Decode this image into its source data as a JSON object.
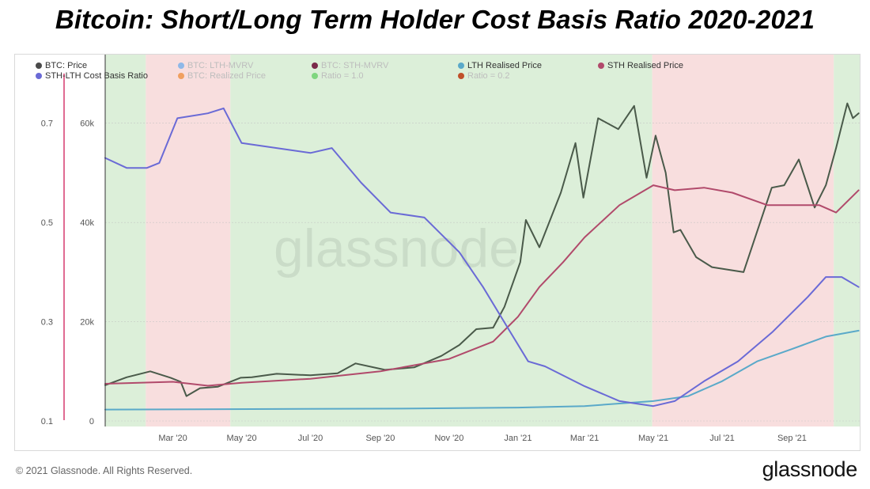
{
  "title": "Bitcoin: Short/Long Term Holder Cost Basis Ratio 2020-2021",
  "watermark": "glassnode",
  "footer": {
    "copyright": "© 2021 Glassnode. All Rights Reserved.",
    "logo": "glassnode"
  },
  "legend": [
    {
      "label": "BTC: Price",
      "color": "#4a4a4a",
      "active": true
    },
    {
      "label": "BTC: LTH-MVRV",
      "color": "#8fb8e8",
      "active": false
    },
    {
      "label": "BTC: STH-MVRV",
      "color": "#7a2a4a",
      "active": false
    },
    {
      "label": "LTH Realised Price",
      "color": "#5aa9c9",
      "active": true
    },
    {
      "label": "STH Realised Price",
      "color": "#b14a6b",
      "active": true
    },
    {
      "label": "STH-LTH Cost Basis Ratio",
      "color": "#6a6ad6",
      "active": true
    },
    {
      "label": "BTC: Realized Price",
      "color": "#f0a060",
      "active": false
    },
    {
      "label": "Ratio = 1.0",
      "color": "#7fd67f",
      "active": false
    },
    {
      "label": "Ratio = 0.2",
      "color": "#c0502a",
      "active": false
    }
  ],
  "chart_data": {
    "type": "line",
    "title": "Bitcoin: Short/Long Term Holder Cost Basis Ratio 2020-2021",
    "x_ticks": [
      "Mar '20",
      "May '20",
      "Jul '20",
      "Sep '20",
      "Nov '20",
      "Jan '21",
      "Mar '21",
      "May '21",
      "Jul '21",
      "Sep '21"
    ],
    "x_tick_dates": [
      "2020-03-01",
      "2020-05-01",
      "2020-07-01",
      "2020-09-01",
      "2020-11-01",
      "2021-01-01",
      "2021-03-01",
      "2021-05-01",
      "2021-07-01",
      "2021-09-01"
    ],
    "xlim": [
      "2020-01-01",
      "2021-10-31"
    ],
    "y_price_ticks": [
      0,
      20000,
      40000,
      60000
    ],
    "y_price_tick_labels": [
      "0",
      "20k",
      "40k",
      "60k"
    ],
    "y_price_range": [
      0,
      70000
    ],
    "y_ratio_ticks": [
      0.1,
      0.3,
      0.5,
      0.7
    ],
    "y_ratio_tick_labels": [
      "0.1",
      "0.3",
      "0.5",
      "0.7"
    ],
    "y_ratio_range": [
      0.1,
      0.8
    ],
    "grid": true,
    "legend_position": "top-left",
    "background_regions": [
      {
        "start": "2020-01-01",
        "end": "2020-02-06",
        "color": "#dcefd9"
      },
      {
        "start": "2020-02-06",
        "end": "2020-04-21",
        "color": "#f8dede"
      },
      {
        "start": "2020-04-21",
        "end": "2021-04-30",
        "color": "#dcefd9"
      },
      {
        "start": "2021-04-30",
        "end": "2021-10-08",
        "color": "#f8dede"
      },
      {
        "start": "2021-10-08",
        "end": "2021-10-31",
        "color": "#dcefd9"
      }
    ],
    "series": [
      {
        "name": "BTC: Price",
        "color": "#4a5a4a",
        "axis": "price",
        "x": [
          "2020-01-01",
          "2020-01-20",
          "2020-02-10",
          "2020-02-28",
          "2020-03-08",
          "2020-03-13",
          "2020-03-25",
          "2020-04-10",
          "2020-04-30",
          "2020-05-10",
          "2020-06-01",
          "2020-07-01",
          "2020-07-25",
          "2020-08-10",
          "2020-09-05",
          "2020-10-01",
          "2020-10-25",
          "2020-11-10",
          "2020-11-25",
          "2020-12-10",
          "2020-12-20",
          "2021-01-03",
          "2021-01-08",
          "2021-01-20",
          "2021-02-08",
          "2021-02-21",
          "2021-02-28",
          "2021-03-13",
          "2021-03-31",
          "2021-04-14",
          "2021-04-25",
          "2021-05-03",
          "2021-05-12",
          "2021-05-19",
          "2021-05-25",
          "2021-06-08",
          "2021-06-22",
          "2021-07-20",
          "2021-08-14",
          "2021-08-25",
          "2021-09-07",
          "2021-09-21",
          "2021-10-01",
          "2021-10-10",
          "2021-10-20",
          "2021-10-25",
          "2021-10-30"
        ],
        "y": [
          7200,
          8800,
          10000,
          8700,
          7900,
          5000,
          6600,
          6900,
          8700,
          8800,
          9500,
          9200,
          9600,
          11600,
          10300,
          10800,
          13100,
          15300,
          18500,
          18800,
          23000,
          32000,
          40500,
          35000,
          46000,
          56000,
          45000,
          61000,
          58800,
          63500,
          49000,
          57500,
          50000,
          38000,
          38500,
          33000,
          31000,
          30000,
          47000,
          47500,
          52700,
          43000,
          47500,
          55000,
          64000,
          61000,
          62000
        ]
      },
      {
        "name": "LTH Realised Price",
        "color": "#5aa9c9",
        "axis": "price",
        "x": [
          "2020-01-01",
          "2020-06-01",
          "2020-10-01",
          "2021-01-01",
          "2021-03-01",
          "2021-05-01",
          "2021-06-01",
          "2021-07-01",
          "2021-08-01",
          "2021-09-01",
          "2021-10-01",
          "2021-10-30"
        ],
        "y": [
          2300,
          2400,
          2500,
          2700,
          3000,
          4000,
          5000,
          8000,
          12000,
          14500,
          17000,
          18200
        ]
      },
      {
        "name": "STH Realised Price",
        "color": "#b14a6b",
        "axis": "price",
        "x": [
          "2020-01-01",
          "2020-03-01",
          "2020-04-01",
          "2020-05-01",
          "2020-07-01",
          "2020-09-01",
          "2020-11-01",
          "2020-12-10",
          "2021-01-01",
          "2021-01-20",
          "2021-02-10",
          "2021-03-01",
          "2021-04-01",
          "2021-05-01",
          "2021-05-20",
          "2021-06-15",
          "2021-07-10",
          "2021-08-10",
          "2021-09-01",
          "2021-09-25",
          "2021-10-10",
          "2021-10-30"
        ],
        "y": [
          7500,
          7900,
          7100,
          7700,
          8500,
          10000,
          12500,
          16000,
          21000,
          27000,
          32000,
          37000,
          43500,
          47500,
          46500,
          47000,
          46000,
          43500,
          43500,
          43500,
          42000,
          46500
        ]
      },
      {
        "name": "STH-LTH Cost Basis Ratio",
        "color": "#6a6ad6",
        "axis": "ratio",
        "x": [
          "2020-01-01",
          "2020-01-20",
          "2020-02-07",
          "2020-02-18",
          "2020-03-05",
          "2020-04-01",
          "2020-04-15",
          "2020-05-01",
          "2020-06-01",
          "2020-07-01",
          "2020-07-20",
          "2020-08-15",
          "2020-09-10",
          "2020-10-10",
          "2020-11-10",
          "2020-12-01",
          "2020-12-25",
          "2021-01-10",
          "2021-01-25",
          "2021-03-01",
          "2021-04-01",
          "2021-05-01",
          "2021-05-20",
          "2021-06-15",
          "2021-07-15",
          "2021-08-15",
          "2021-09-15",
          "2021-10-01",
          "2021-10-15",
          "2021-10-30"
        ],
        "y": [
          0.63,
          0.61,
          0.61,
          0.62,
          0.71,
          0.72,
          0.73,
          0.66,
          0.65,
          0.64,
          0.65,
          0.58,
          0.52,
          0.51,
          0.44,
          0.37,
          0.28,
          0.22,
          0.21,
          0.17,
          0.14,
          0.13,
          0.14,
          0.18,
          0.22,
          0.28,
          0.35,
          0.39,
          0.39,
          0.37
        ]
      }
    ]
  }
}
